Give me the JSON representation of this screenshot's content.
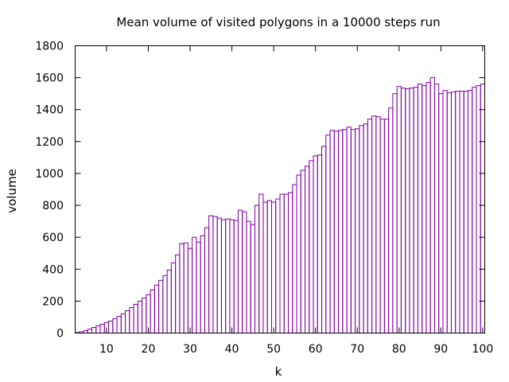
{
  "chart_data": {
    "type": "bar",
    "title": "Mean volume of visited polygons in a 10000 steps run",
    "xlabel": "k",
    "ylabel": "volume",
    "xlim": [
      3,
      100
    ],
    "ylim": [
      0,
      1800
    ],
    "xticks": [
      10,
      20,
      30,
      40,
      50,
      60,
      70,
      80,
      90,
      100
    ],
    "yticks": [
      0,
      200,
      400,
      600,
      800,
      1000,
      1200,
      1400,
      1600,
      1800
    ],
    "grid": false,
    "legend": "none",
    "bar_style": "outline",
    "color": "#8000a0",
    "x": [
      3,
      4,
      5,
      6,
      7,
      8,
      9,
      10,
      11,
      12,
      13,
      14,
      15,
      16,
      17,
      18,
      19,
      20,
      21,
      22,
      23,
      24,
      25,
      26,
      27,
      28,
      29,
      30,
      31,
      32,
      33,
      34,
      35,
      36,
      37,
      38,
      39,
      40,
      41,
      42,
      43,
      44,
      45,
      46,
      47,
      48,
      49,
      50,
      51,
      52,
      53,
      54,
      55,
      56,
      57,
      58,
      59,
      60,
      61,
      62,
      63,
      64,
      65,
      66,
      67,
      68,
      69,
      70,
      71,
      72,
      73,
      74,
      75,
      76,
      77,
      78,
      79,
      80,
      81,
      82,
      83,
      84,
      85,
      86,
      87,
      88,
      89,
      90,
      91,
      92,
      93,
      94,
      95,
      96,
      97,
      98,
      99,
      100
    ],
    "values": [
      3,
      8,
      15,
      25,
      35,
      45,
      55,
      65,
      75,
      90,
      105,
      120,
      140,
      160,
      180,
      200,
      220,
      240,
      270,
      300,
      330,
      360,
      395,
      440,
      490,
      560,
      565,
      530,
      600,
      570,
      610,
      660,
      735,
      730,
      720,
      710,
      715,
      710,
      705,
      770,
      760,
      700,
      680,
      800,
      870,
      820,
      830,
      820,
      840,
      870,
      870,
      880,
      930,
      990,
      1020,
      1045,
      1080,
      1110,
      1115,
      1170,
      1240,
      1270,
      1265,
      1270,
      1275,
      1290,
      1275,
      1280,
      1300,
      1310,
      1340,
      1360,
      1355,
      1340,
      1340,
      1410,
      1500,
      1545,
      1535,
      1530,
      1535,
      1540,
      1560,
      1550,
      1570,
      1600,
      1560,
      1500,
      1520,
      1505,
      1510,
      1515,
      1515,
      1515,
      1520,
      1540,
      1550,
      1560
    ]
  }
}
